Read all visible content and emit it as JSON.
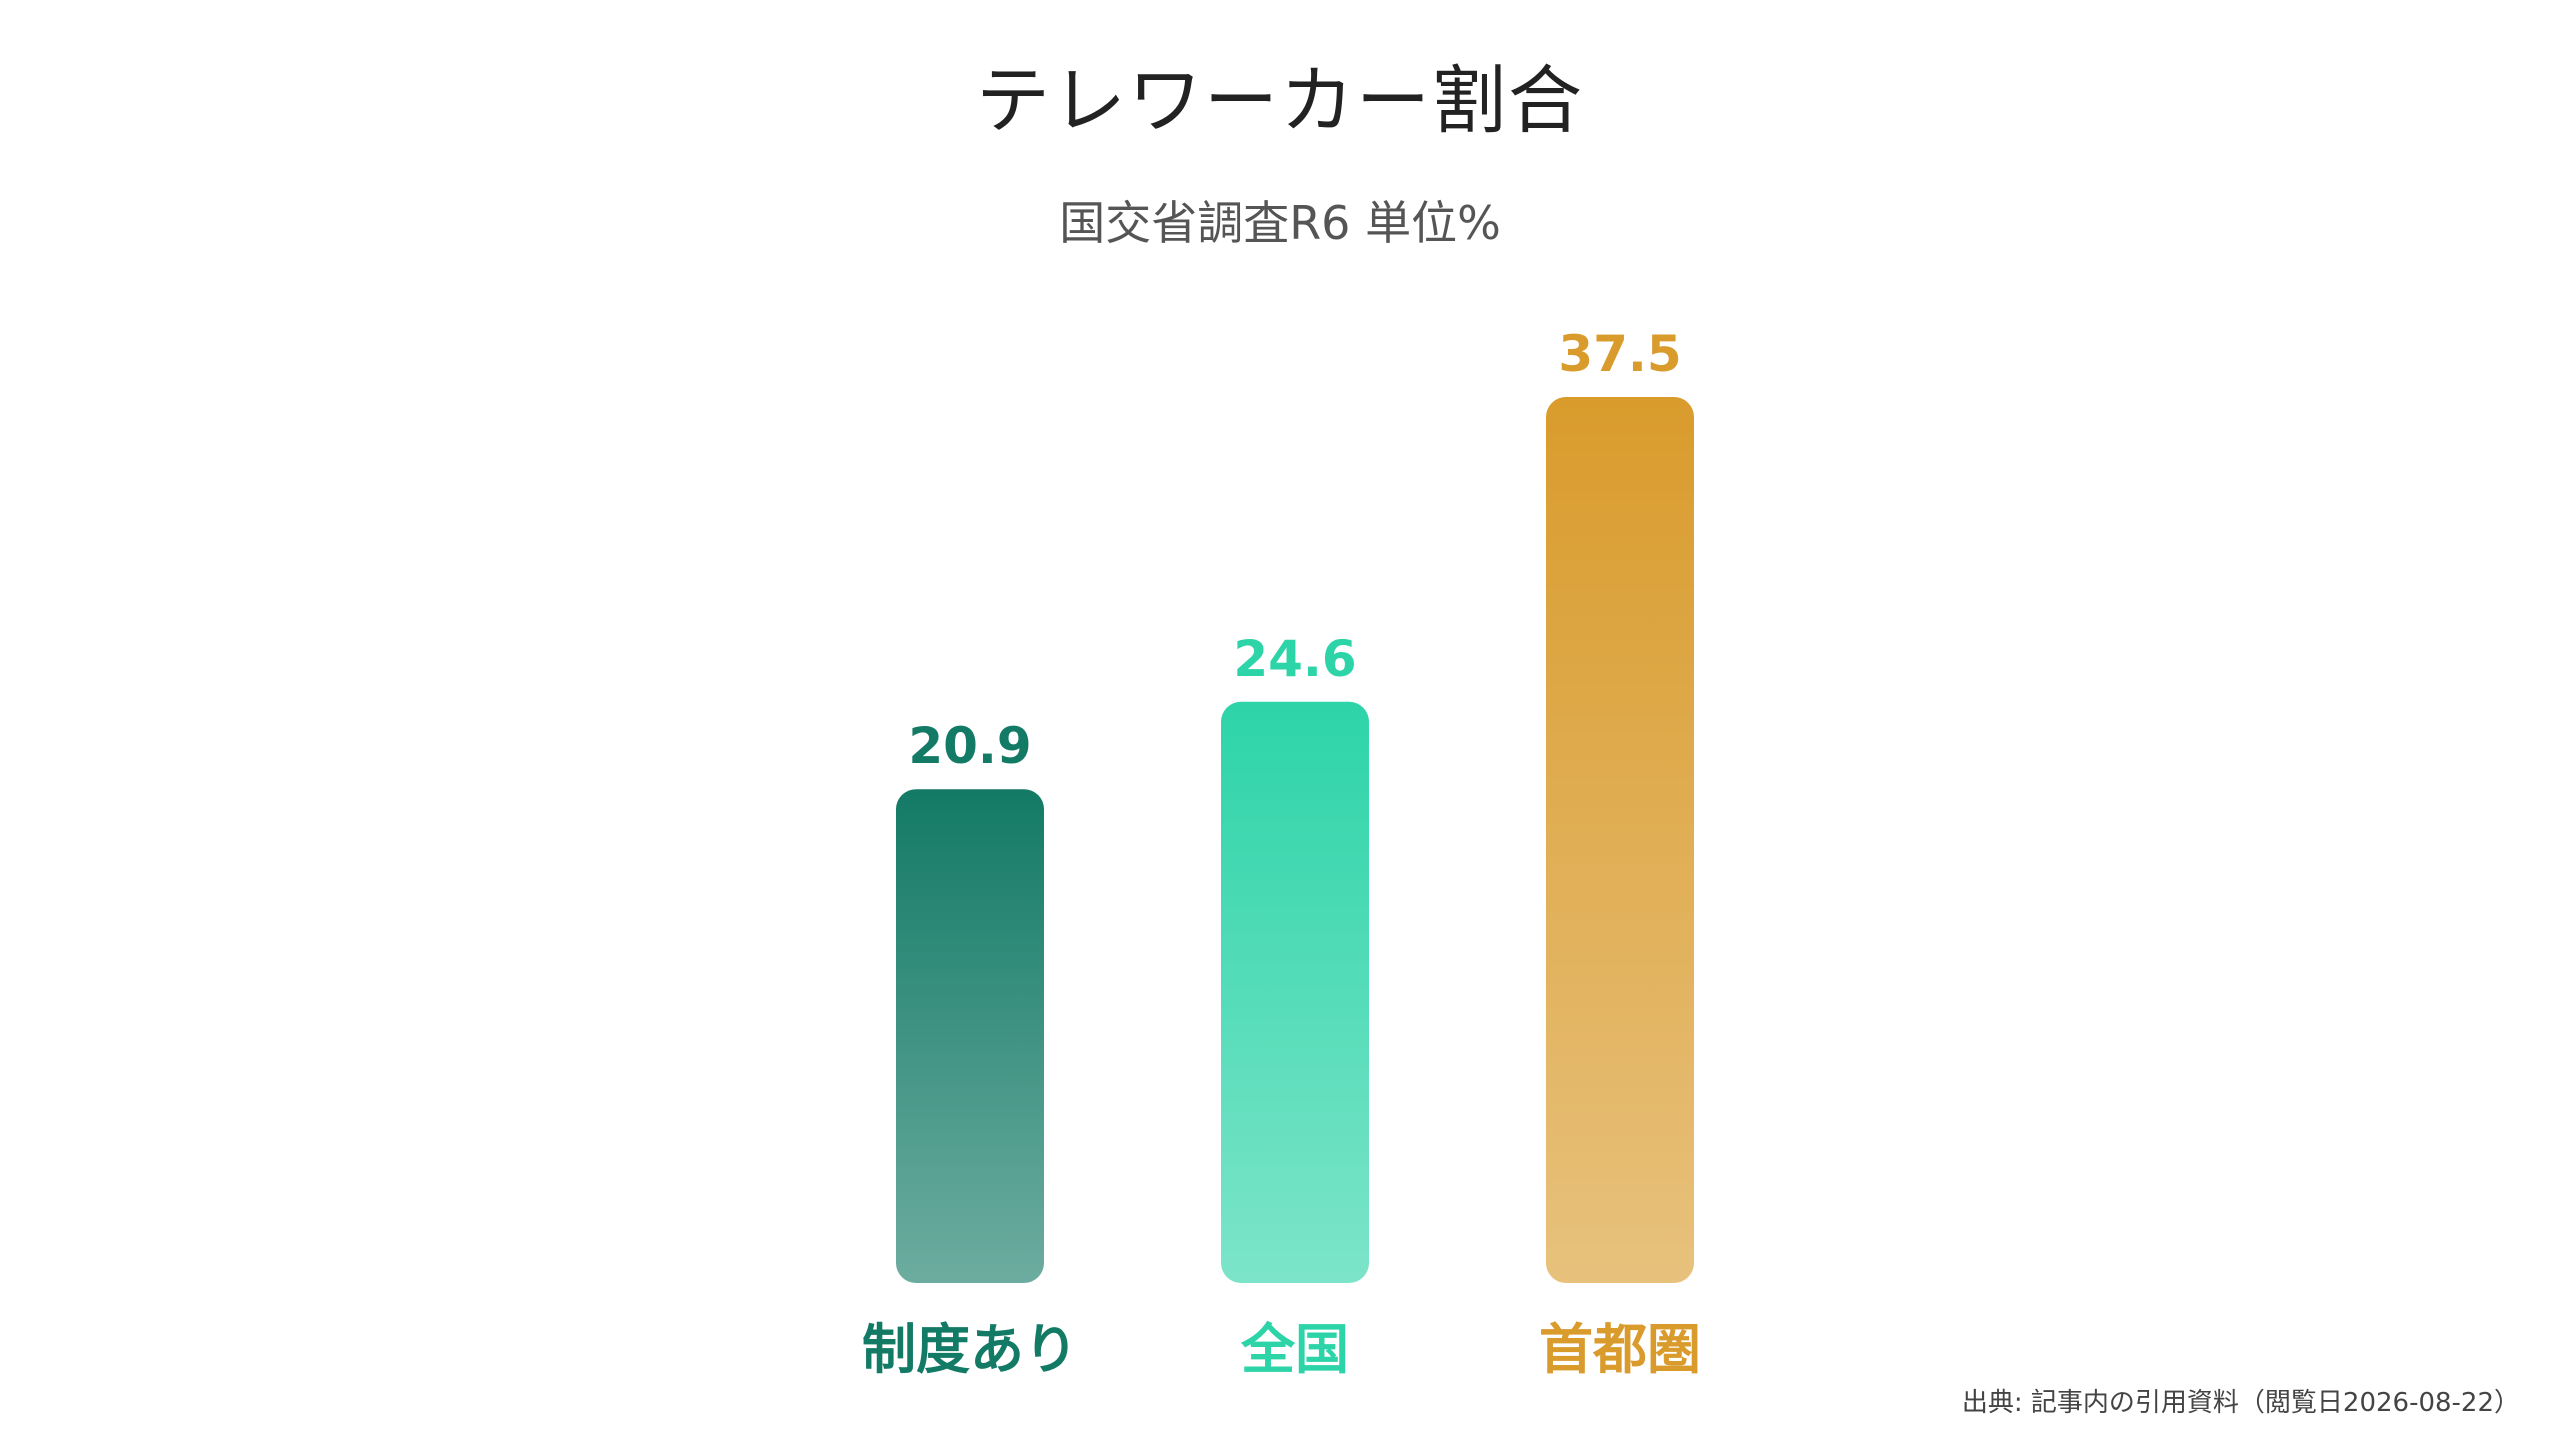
{
  "title": "テレワーカー割合",
  "subtitle": "国交省調査R6 単位%",
  "source": "出典: 記事内の引用資料（閲覧日2026-08-22）",
  "chart_data": {
    "type": "bar",
    "categories": [
      "制度あり",
      "全国",
      "首都圏"
    ],
    "values": [
      20.9,
      24.6,
      37.5
    ],
    "value_labels": [
      "20.9",
      "24.6",
      "37.5"
    ],
    "colors": [
      "#137a66",
      "#2dd4a8",
      "#d99b2c"
    ],
    "ylim": [
      0,
      37.5
    ],
    "grid": false,
    "legend": "none",
    "xlabel": "",
    "ylabel": ""
  }
}
